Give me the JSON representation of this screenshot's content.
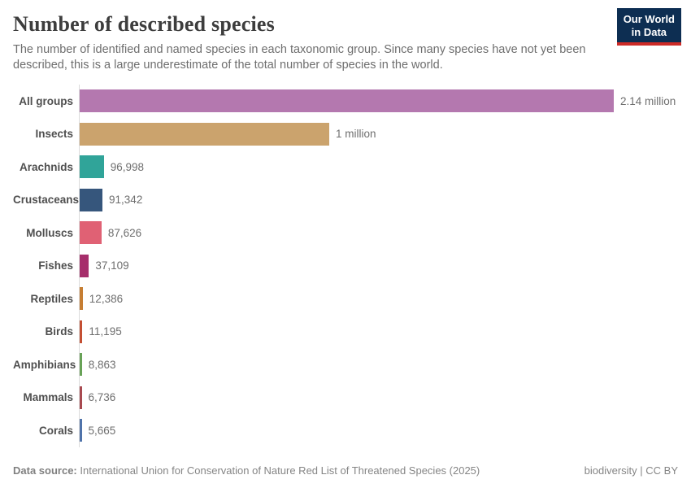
{
  "header": {
    "title": "Number of described species",
    "subtitle": "The number of identified and named species in each taxonomic group. Since many species have not yet been described, this is a large underestimate of the total number of species in the world."
  },
  "logo": {
    "line1": "Our World",
    "line2": "in Data",
    "background_color": "#0d2e52",
    "accent_color": "#cd2b27"
  },
  "chart_data": {
    "type": "bar",
    "orientation": "horizontal",
    "title": "Number of described species",
    "xlabel": "",
    "ylabel": "",
    "grid": false,
    "xlim": [
      0,
      2140000
    ],
    "categories": [
      "All groups",
      "Insects",
      "Arachnids",
      "Crustaceans",
      "Molluscs",
      "Fishes",
      "Reptiles",
      "Birds",
      "Amphibians",
      "Mammals",
      "Corals"
    ],
    "values": [
      2140000,
      1000000,
      96998,
      91342,
      87626,
      37109,
      12386,
      11195,
      8863,
      6736,
      5665
    ],
    "value_labels": [
      "2.14 million",
      "1 million",
      "96,998",
      "91,342",
      "87,626",
      "37,109",
      "12,386",
      "11,195",
      "8,863",
      "6,736",
      "5,665"
    ],
    "bar_colors": [
      "#b478af",
      "#cba36d",
      "#30a499",
      "#36567c",
      "#e06174",
      "#a62e6b",
      "#c67e33",
      "#c44f33",
      "#68a257",
      "#a84a50",
      "#4f73aa"
    ],
    "axis_color": "#dcdcdc"
  },
  "footer": {
    "source_label": "Data source:",
    "source_text": " International Union for Conservation of Nature Red List of Threatened Species (2025)",
    "credit": "biodiversity | CC BY"
  }
}
